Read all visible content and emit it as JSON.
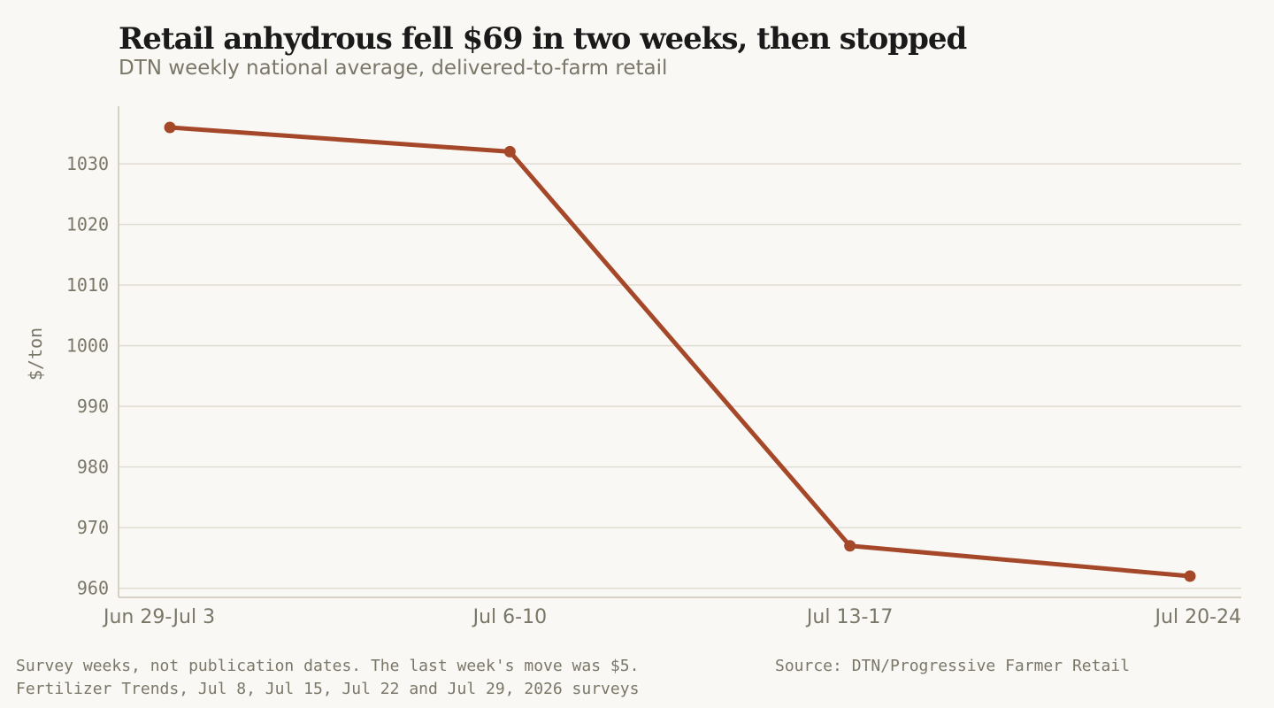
{
  "header": {
    "title": "Retail anhydrous fell $69 in two weeks, then stopped",
    "subtitle": "DTN weekly national average, delivered-to-farm retail"
  },
  "footer": {
    "note_line1": "Survey weeks, not publication dates. The last week's move was $5.",
    "note_line2": "Fertilizer Trends, Jul 8, Jul 15, Jul 22 and Jul 29, 2026 surveys",
    "source": "Source: DTN/Progressive Farmer Retail"
  },
  "colors": {
    "line": "#a5482a",
    "grid": "#e0dcd2",
    "axis": "#d6d1c4",
    "tick_text": "#7a7668"
  },
  "chart_data": {
    "type": "line",
    "title": "Retail anhydrous fell $69 in two weeks, then stopped",
    "subtitle": "DTN weekly national average, delivered-to-farm retail",
    "xlabel": "",
    "ylabel": "$/ton",
    "categories": [
      "Jun 29-Jul 3",
      "Jul 6-10",
      "Jul 13-17",
      "Jul 20-24"
    ],
    "series": [
      {
        "values": [
          1036,
          1032,
          967,
          962
        ]
      }
    ],
    "yticks": [
      960,
      970,
      980,
      990,
      1000,
      1010,
      1020,
      1030
    ],
    "ylim": [
      958.5,
      1039.5
    ],
    "grid": true,
    "legend": "none"
  }
}
